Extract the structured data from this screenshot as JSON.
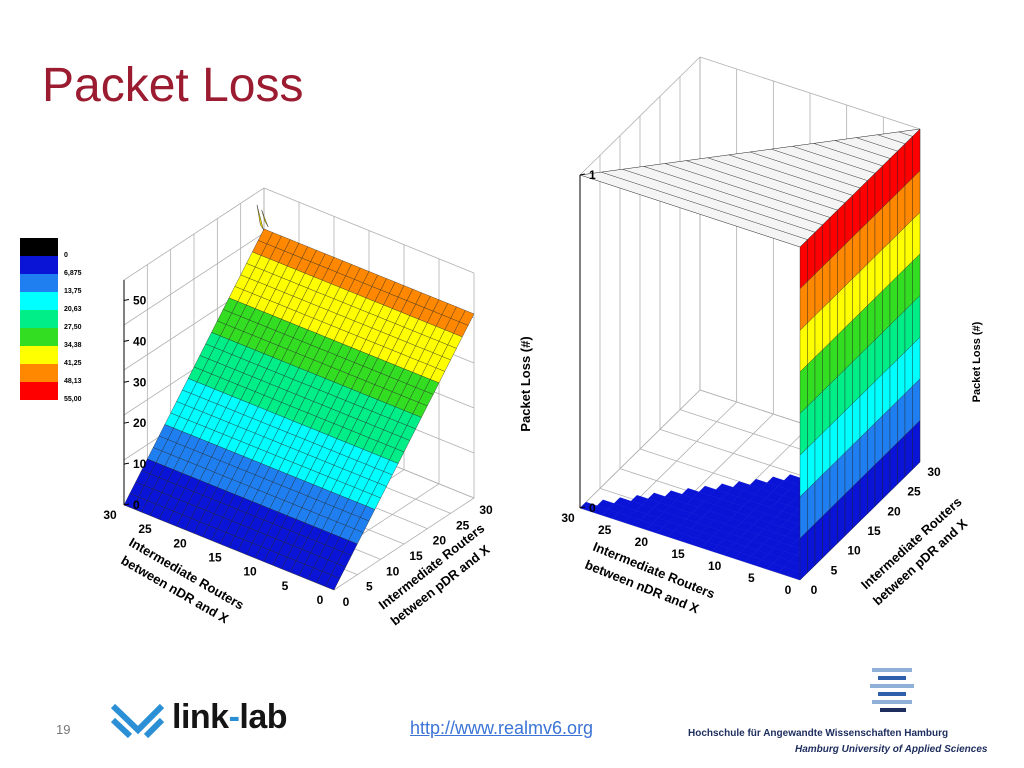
{
  "slide": {
    "title": "Packet Loss",
    "page_number": "19",
    "link_text": "http://www.realmv6.org",
    "logo_left": {
      "word1": "link",
      "dash": "-",
      "word2": "lab"
    },
    "logo_right": {
      "line1": "Hochschule für Angewandte Wissenschaften Hamburg",
      "line2": "Hamburg University of Applied Sciences"
    }
  },
  "colors": {
    "title": "#9b1b30",
    "link": "#3b74d6",
    "grid": "#b0b0b0"
  },
  "legend": {
    "levels": [
      "0",
      "6,875",
      "13,75",
      "20,63",
      "27,50",
      "34,38",
      "41,25",
      "48,13",
      "55,00"
    ],
    "colors": [
      "#000000",
      "#0a14d6",
      "#1f7ff0",
      "#00ffff",
      "#00ee88",
      "#33dd22",
      "#ffff00",
      "#ff8800",
      "#ff0000"
    ]
  },
  "chart_data": [
    {
      "type": "surface3d",
      "zlabel": "Packet Loss (#)",
      "xlabel": [
        "Intermediate Routers",
        "between nDR and X"
      ],
      "ylabel": [
        "Intermediate Routers",
        "between pDR and X"
      ],
      "x_ticks": [
        "0",
        "5",
        "10",
        "15",
        "20",
        "25",
        "30"
      ],
      "y_ticks": [
        "0",
        "5",
        "10",
        "15",
        "20",
        "25",
        "30"
      ],
      "z_ticks": [
        "0",
        "10",
        "20",
        "30",
        "40",
        "50"
      ],
      "xlim": [
        0,
        30
      ],
      "ylim": [
        0,
        30
      ],
      "zlim": [
        0,
        55
      ],
      "x": [
        0,
        5,
        10,
        15,
        20,
        25,
        30
      ],
      "y": [
        0,
        5,
        10,
        15,
        20,
        25,
        30
      ],
      "z": [
        [
          0,
          0,
          0,
          0,
          0,
          0,
          0
        ],
        [
          7,
          7,
          7,
          7,
          7,
          7,
          7
        ],
        [
          15,
          15,
          15,
          15,
          15,
          15,
          15
        ],
        [
          23,
          23,
          23,
          23,
          23,
          23,
          23
        ],
        [
          31,
          31,
          31,
          31,
          31,
          31,
          31
        ],
        [
          39,
          39,
          39,
          39,
          39,
          39,
          39
        ],
        [
          45,
          45,
          45,
          45,
          45,
          45,
          47
        ]
      ]
    },
    {
      "type": "surface3d",
      "zlabel": "Packet Loss (#)",
      "xlabel": [
        "Intermediate Routers",
        "between nDR and X"
      ],
      "ylabel": [
        "Intermediate Routers",
        "between pDR and X"
      ],
      "x_ticks": [
        "0",
        "5",
        "10",
        "15",
        "20",
        "25",
        "30"
      ],
      "y_ticks": [
        "0",
        "5",
        "10",
        "15",
        "20",
        "25",
        "30"
      ],
      "z_ticks": [
        "0",
        "1"
      ],
      "xlim": [
        0,
        30
      ],
      "ylim": [
        0,
        30
      ],
      "zlim": [
        0,
        1
      ],
      "surface": "floor at 0 for x > 0; vertical wall at x = 0 rising to 1"
    }
  ]
}
